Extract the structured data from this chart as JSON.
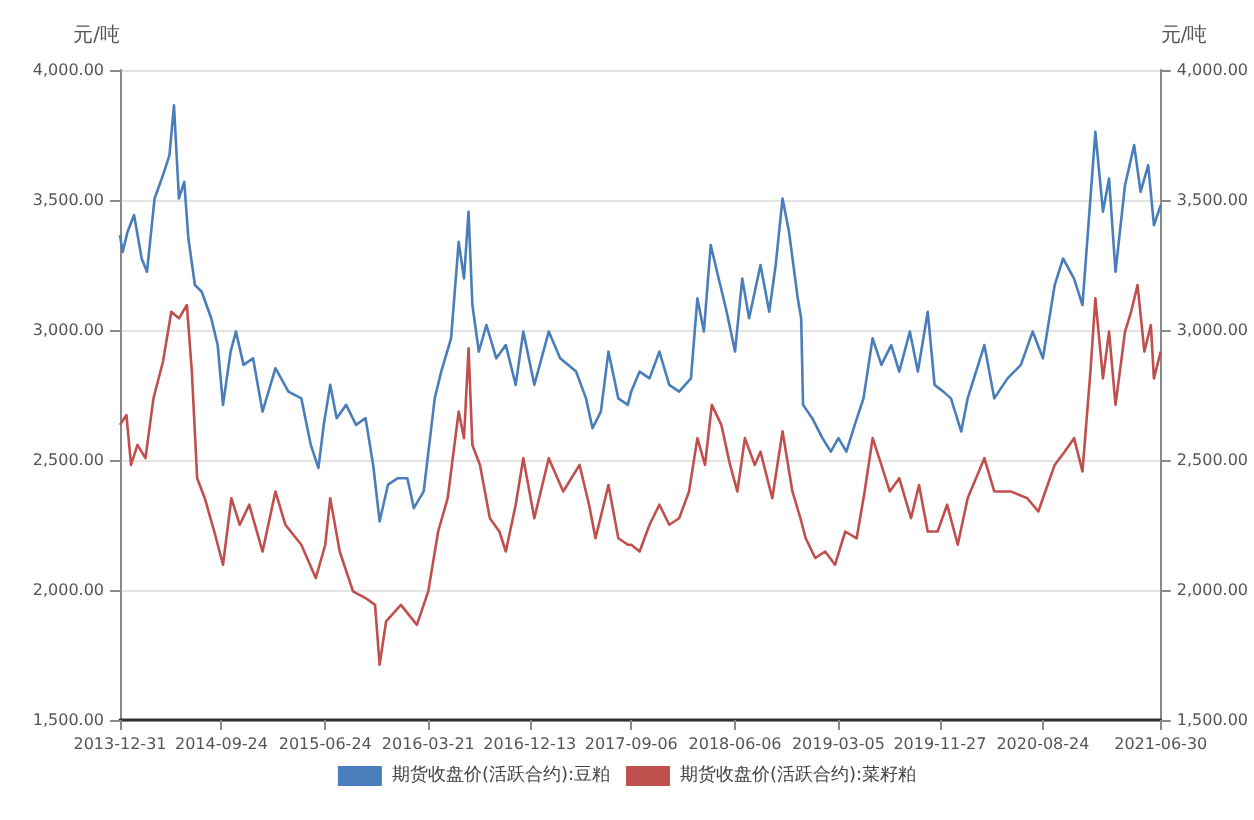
{
  "chart_data": {
    "type": "line",
    "ylabel": "元/吨",
    "y2label": "元/吨",
    "xlim": [
      "2013-12-31",
      "2021-06-30"
    ],
    "xticks": [
      "2013-12-31",
      "2014-09-24",
      "2015-06-24",
      "2016-03-21",
      "2016-12-13",
      "2017-09-06",
      "2018-06-06",
      "2019-03-05",
      "2019-11-27",
      "2020-08-24",
      "2021-06-30"
    ],
    "ylim": [
      1500,
      4000
    ],
    "yticks": [
      {
        "value": 1500,
        "label": "1,500.00"
      },
      {
        "value": 2000,
        "label": "2,000.00"
      },
      {
        "value": 2500,
        "label": "2,500.00"
      },
      {
        "value": 3000,
        "label": "3,000.00"
      },
      {
        "value": 3500,
        "label": "3,500.00"
      },
      {
        "value": 4000,
        "label": "4,000.00"
      }
    ],
    "y2lim": [
      1500,
      4000
    ],
    "y2ticks": [
      {
        "value": 1500,
        "label": "1,500.00"
      },
      {
        "value": 2000,
        "label": "2,000.00"
      },
      {
        "value": 2500,
        "label": "2,500.00"
      },
      {
        "value": 3000,
        "label": "3,000.00"
      },
      {
        "value": 3500,
        "label": "3,500.00"
      },
      {
        "value": 4000,
        "label": "4,000.00"
      }
    ],
    "grid": "y",
    "legend": "bottom",
    "marker": "none",
    "line_style": "solid",
    "series": [
      {
        "name": "期货收盘价(活跃合约):豆粕",
        "color": "#4a7ebb",
        "x": [
          "2013-12-31",
          "2014-01-07",
          "2014-01-20",
          "2014-02-06",
          "2014-02-26",
          "2014-03-12",
          "2014-04-01",
          "2014-04-23",
          "2014-05-10",
          "2014-05-22",
          "2014-06-04",
          "2014-06-18",
          "2014-06-29",
          "2014-07-16",
          "2014-08-03",
          "2014-08-28",
          "2014-09-14",
          "2014-09-28",
          "2014-10-18",
          "2014-11-01",
          "2014-11-21",
          "2014-12-16",
          "2015-01-10",
          "2015-02-13",
          "2015-03-19",
          "2015-04-22",
          "2015-05-17",
          "2015-06-06",
          "2015-06-20",
          "2015-07-07",
          "2015-07-24",
          "2015-08-18",
          "2015-09-13",
          "2015-10-08",
          "2015-10-28",
          "2015-11-14",
          "2015-12-06",
          "2016-01-01",
          "2016-01-26",
          "2016-02-12",
          "2016-03-09",
          "2016-04-07",
          "2016-04-24",
          "2016-05-20",
          "2016-06-09",
          "2016-06-23",
          "2016-07-05",
          "2016-07-15",
          "2016-08-01",
          "2016-08-21",
          "2016-09-16",
          "2016-10-11",
          "2016-11-06",
          "2016-11-26",
          "2016-12-25",
          "2017-02-01",
          "2017-03-03",
          "2017-04-14",
          "2017-05-10",
          "2017-05-27",
          "2017-06-18",
          "2017-07-08",
          "2017-08-03",
          "2017-08-28",
          "2017-09-06",
          "2017-09-28",
          "2017-10-24",
          "2017-11-19",
          "2017-12-15",
          "2018-01-10",
          "2018-02-10",
          "2018-02-27",
          "2018-03-16",
          "2018-04-03",
          "2018-04-24",
          "2018-05-15",
          "2018-06-06",
          "2018-06-25",
          "2018-07-13",
          "2018-08-12",
          "2018-09-04",
          "2018-09-21",
          "2018-10-09",
          "2018-10-26",
          "2018-11-18",
          "2018-11-27",
          "2018-12-02",
          "2018-12-26",
          "2019-01-22",
          "2019-02-13",
          "2019-03-05",
          "2019-03-26",
          "2019-04-17",
          "2019-05-10",
          "2019-06-03",
          "2019-06-26",
          "2019-07-22",
          "2019-08-12",
          "2019-09-09",
          "2019-09-30",
          "2019-10-26",
          "2019-11-13",
          "2019-12-06",
          "2019-12-26",
          "2020-01-22",
          "2020-02-08",
          "2020-03-23",
          "2020-04-18",
          "2020-05-23",
          "2020-06-27",
          "2020-07-28",
          "2020-08-24",
          "2020-09-24",
          "2020-10-16",
          "2020-11-14",
          "2020-12-06",
          "2020-12-27",
          "2021-01-09",
          "2021-01-29",
          "2021-02-14",
          "2021-03-03",
          "2021-03-28",
          "2021-04-21",
          "2021-05-08",
          "2021-05-28",
          "2021-06-12",
          "2021-06-30"
        ],
        "values": [
          3365,
          3300,
          3378,
          3442,
          3275,
          3224,
          3506,
          3595,
          3672,
          3864,
          3506,
          3570,
          3352,
          3173,
          3147,
          3045,
          2942,
          2712,
          2917,
          2994,
          2866,
          2891,
          2686,
          2853,
          2763,
          2737,
          2558,
          2469,
          2635,
          2789,
          2661,
          2712,
          2635,
          2661,
          2481,
          2264,
          2405,
          2430,
          2430,
          2315,
          2379,
          2737,
          2840,
          2968,
          3339,
          3198,
          3455,
          3096,
          2917,
          3019,
          2891,
          2942,
          2789,
          2994,
          2789,
          2994,
          2891,
          2840,
          2737,
          2622,
          2686,
          2917,
          2737,
          2712,
          2763,
          2840,
          2814,
          2917,
          2789,
          2763,
          2814,
          3122,
          2994,
          3327,
          3198,
          3070,
          2917,
          3198,
          3045,
          3250,
          3070,
          3250,
          3506,
          3378,
          3122,
          3045,
          2712,
          2661,
          2584,
          2532,
          2584,
          2532,
          2635,
          2737,
          2968,
          2866,
          2942,
          2840,
          2994,
          2840,
          3070,
          2789,
          2763,
          2737,
          2610,
          2737,
          2942,
          2737,
          2814,
          2866,
          2994,
          2891,
          3173,
          3275,
          3198,
          3096,
          3506,
          3762,
          3455,
          3583,
          3224,
          3557,
          3711,
          3531,
          3634,
          3403,
          3480
        ]
      },
      {
        "name": "期货收盘价(活跃合约):菜籽粕",
        "color": "#c0504d",
        "x": [
          "2013-12-31",
          "2014-01-17",
          "2014-01-29",
          "2014-02-15",
          "2014-03-08",
          "2014-03-29",
          "2014-04-23",
          "2014-05-15",
          "2014-06-04",
          "2014-06-25",
          "2014-07-08",
          "2014-07-22",
          "2014-08-11",
          "2014-09-05",
          "2014-09-28",
          "2014-10-20",
          "2014-11-11",
          "2014-12-06",
          "2015-01-10",
          "2015-02-13",
          "2015-03-11",
          "2015-04-22",
          "2015-05-30",
          "2015-06-24",
          "2015-07-07",
          "2015-08-01",
          "2015-09-05",
          "2015-10-08",
          "2015-11-02",
          "2015-11-14",
          "2015-12-01",
          "2016-01-09",
          "2016-02-20",
          "2016-03-21",
          "2016-04-16",
          "2016-05-11",
          "2016-06-09",
          "2016-06-23",
          "2016-07-05",
          "2016-07-15",
          "2016-08-04",
          "2016-08-30",
          "2016-09-24",
          "2016-10-11",
          "2016-11-06",
          "2016-11-26",
          "2016-12-25",
          "2017-02-01",
          "2017-03-11",
          "2017-04-23",
          "2017-05-18",
          "2017-06-04",
          "2017-07-08",
          "2017-08-03",
          "2017-08-28",
          "2017-09-06",
          "2017-09-28",
          "2017-10-24",
          "2017-11-19",
          "2017-12-15",
          "2018-01-10",
          "2018-02-05",
          "2018-02-27",
          "2018-03-19",
          "2018-04-06",
          "2018-05-01",
          "2018-05-24",
          "2018-06-12",
          "2018-07-02",
          "2018-07-28",
          "2018-08-12",
          "2018-09-12",
          "2018-10-09",
          "2018-11-04",
          "2018-11-25",
          "2018-12-09",
          "2019-01-03",
          "2019-01-29",
          "2019-02-24",
          "2019-03-23",
          "2019-04-22",
          "2019-05-13",
          "2019-06-03",
          "2019-06-26",
          "2019-07-18",
          "2019-08-12",
          "2019-09-12",
          "2019-10-03",
          "2019-10-26",
          "2019-11-21",
          "2019-12-16",
          "2020-01-13",
          "2020-02-08",
          "2020-03-23",
          "2020-04-18",
          "2020-06-01",
          "2020-07-14",
          "2020-08-12",
          "2020-08-24",
          "2020-09-24",
          "2020-10-20",
          "2020-11-14",
          "2020-12-06",
          "2020-12-27",
          "2021-01-09",
          "2021-01-29",
          "2021-02-14",
          "2021-03-03",
          "2021-03-28",
          "2021-04-13",
          "2021-04-30",
          "2021-05-18",
          "2021-06-04",
          "2021-06-12",
          "2021-06-30"
        ],
        "values": [
          2635,
          2673,
          2481,
          2558,
          2507,
          2737,
          2878,
          3070,
          3045,
          3096,
          2840,
          2430,
          2353,
          2225,
          2097,
          2353,
          2251,
          2328,
          2148,
          2379,
          2251,
          2174,
          2046,
          2174,
          2353,
          2148,
          1995,
          1969,
          1943,
          1713,
          1879,
          1943,
          1866,
          1995,
          2225,
          2353,
          2686,
          2584,
          2930,
          2558,
          2481,
          2276,
          2225,
          2148,
          2328,
          2507,
          2276,
          2507,
          2379,
          2481,
          2328,
          2199,
          2404,
          2199,
          2174,
          2174,
          2148,
          2251,
          2328,
          2251,
          2276,
          2379,
          2584,
          2481,
          2712,
          2635,
          2481,
          2379,
          2584,
          2481,
          2532,
          2353,
          2610,
          2379,
          2276,
          2199,
          2123,
          2148,
          2097,
          2225,
          2199,
          2379,
          2584,
          2481,
          2379,
          2430,
          2276,
          2404,
          2225,
          2225,
          2328,
          2174,
          2353,
          2507,
          2379,
          2379,
          2353,
          2302,
          2353,
          2481,
          2532,
          2584,
          2456,
          2840,
          3122,
          2814,
          2994,
          2712,
          2994,
          3070,
          3173,
          2917,
          3019,
          2814,
          2917
        ]
      }
    ]
  }
}
